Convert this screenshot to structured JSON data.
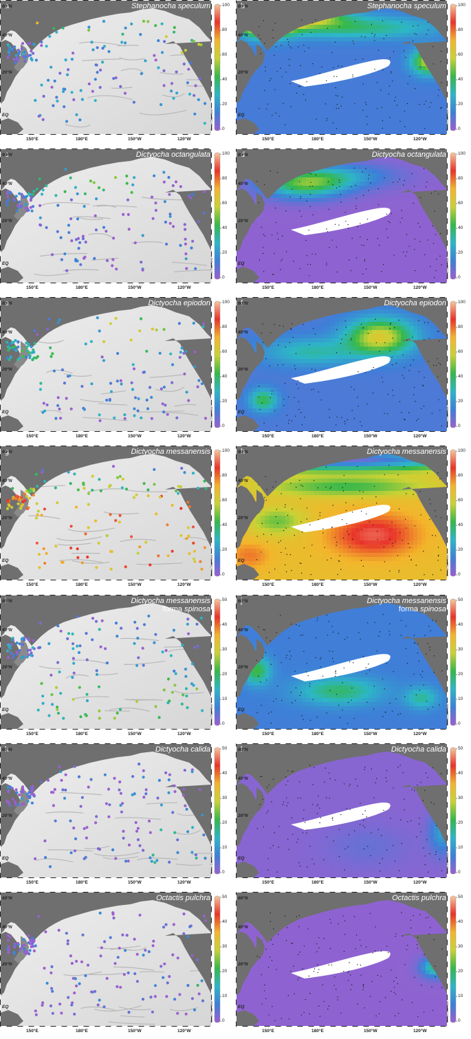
{
  "lat_labels": [
    "60°N",
    "40°N",
    "20°N",
    "EQ"
  ],
  "lon_labels": [
    "150°E",
    "180°E",
    "150°W",
    "120°W"
  ],
  "watermark": "Ocean Data View",
  "colors": {
    "land": "#6f6f6f",
    "ocean_light": "#d9d9d9",
    "station_dot": "#1a1a1a",
    "blank_area": "#ffffff",
    "scale": [
      "#9b5fd0",
      "#3e7fd8",
      "#2db6c7",
      "#35b84a",
      "#c9d235",
      "#f3b52b",
      "#e8332a",
      "#f6c8a0"
    ]
  },
  "panels": [
    {
      "id": "a",
      "letter": "a",
      "species": "Stephanocha speculum",
      "sub": "",
      "type": "stations",
      "max": "100",
      "ticks": [
        "100",
        "80",
        "60",
        "40",
        "20",
        "0"
      ]
    },
    {
      "id": "b",
      "letter": "b",
      "species": "Stephanocha speculum",
      "sub": "",
      "type": "gridded",
      "max": "100",
      "ticks": [
        "100",
        "80",
        "60",
        "40",
        "20",
        "0"
      ]
    },
    {
      "id": "c",
      "letter": "c",
      "species": "Dictyocha octangulata",
      "sub": "",
      "type": "stations",
      "max": "100",
      "ticks": [
        "100",
        "80",
        "60",
        "40",
        "20",
        "0"
      ]
    },
    {
      "id": "d",
      "letter": "d",
      "species": "Dictyocha octangulata",
      "sub": "",
      "type": "gridded",
      "max": "100",
      "ticks": [
        "100",
        "80",
        "60",
        "40",
        "20",
        "0"
      ]
    },
    {
      "id": "e",
      "letter": "e",
      "species": "Dictyocha epiodon",
      "sub": "",
      "type": "stations",
      "max": "100",
      "ticks": [
        "100",
        "80",
        "60",
        "40",
        "20",
        "0"
      ]
    },
    {
      "id": "f",
      "letter": "f",
      "species": "Dictyocha epiodon",
      "sub": "",
      "type": "gridded",
      "max": "100",
      "ticks": [
        "100",
        "80",
        "60",
        "40",
        "20",
        "0"
      ]
    },
    {
      "id": "g",
      "letter": "g",
      "species": "Dictyocha messanensis",
      "sub": "",
      "type": "stations",
      "max": "100",
      "ticks": [
        "100",
        "80",
        "60",
        "40",
        "20",
        "0"
      ]
    },
    {
      "id": "h",
      "letter": "h",
      "species": "Dictyocha messanensis",
      "sub": "",
      "type": "gridded",
      "max": "100",
      "ticks": [
        "100",
        "80",
        "60",
        "40",
        "20",
        "0"
      ]
    },
    {
      "id": "i",
      "letter": "i",
      "species": "Dictyocha messanensis",
      "sub_prefix": "forma ",
      "sub": "spinosa",
      "type": "stations",
      "max": "50",
      "ticks": [
        "50",
        "40",
        "30",
        "20",
        "10",
        "0"
      ]
    },
    {
      "id": "j",
      "letter": "j",
      "species": "Dictyocha messanensis",
      "sub_prefix": "forma ",
      "sub": "spinosa",
      "type": "gridded",
      "max": "50",
      "ticks": [
        "50",
        "40",
        "30",
        "20",
        "10",
        "0"
      ]
    },
    {
      "id": "k",
      "letter": "k",
      "species": "Dictyocha calida",
      "sub": "",
      "type": "stations",
      "max": "50",
      "ticks": [
        "50",
        "40",
        "30",
        "20",
        "10",
        "0"
      ]
    },
    {
      "id": "l",
      "letter": "l",
      "species": "Dictyocha calida",
      "sub": "",
      "type": "gridded",
      "max": "50",
      "ticks": [
        "50",
        "40",
        "30",
        "20",
        "10",
        "0"
      ]
    },
    {
      "id": "m",
      "letter": "",
      "species": "Octactis pulchra",
      "sub": "",
      "type": "stations",
      "max": "50",
      "ticks": [
        "50",
        "40",
        "30",
        "20",
        "10",
        "0"
      ]
    },
    {
      "id": "n",
      "letter": "",
      "species": "Octactis pulchra",
      "sub": "",
      "type": "gridded",
      "max": "50",
      "ticks": [
        "50",
        "40",
        "30",
        "20",
        "10",
        "0"
      ]
    }
  ]
}
